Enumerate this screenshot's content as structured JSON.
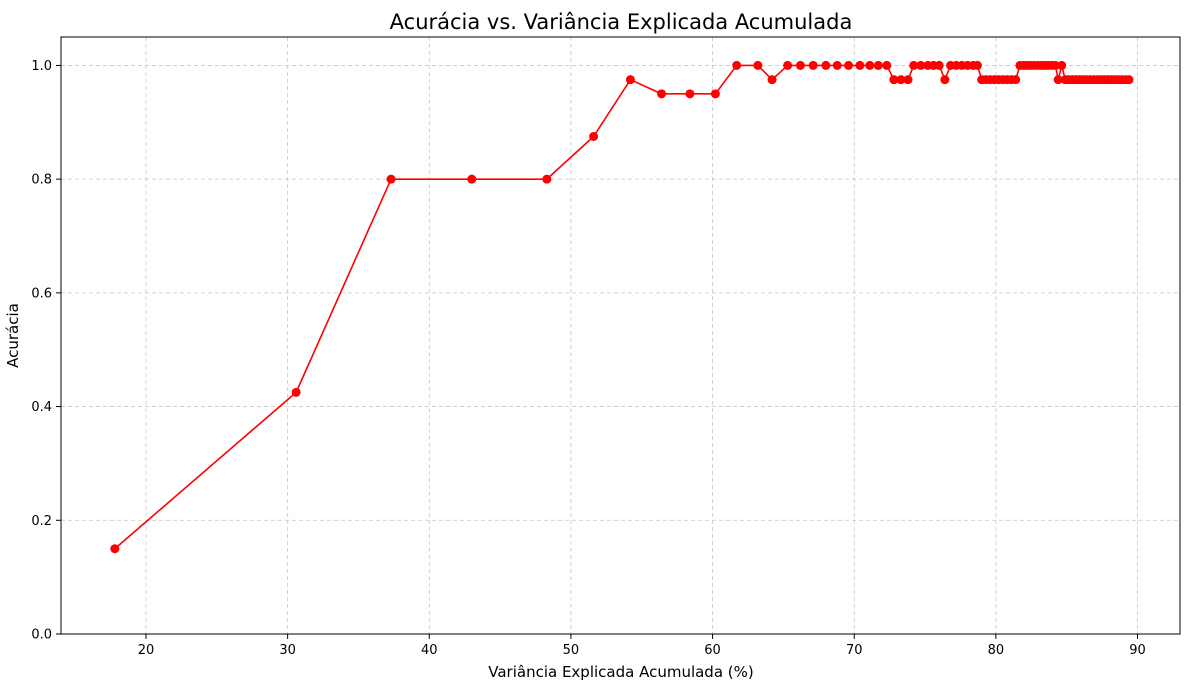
{
  "chart_data": {
    "type": "line",
    "title": "Acurácia vs. Variância Explicada Acumulada",
    "xlabel": "Variância Explicada Acumulada (%)",
    "ylabel": "Acurácia",
    "xlim": [
      14,
      93
    ],
    "ylim": [
      0.0,
      1.05
    ],
    "xticks": [
      20,
      30,
      40,
      50,
      60,
      70,
      80,
      90
    ],
    "yticks": [
      0.0,
      0.2,
      0.4,
      0.6,
      0.8,
      1.0
    ],
    "xtick_labels": [
      "20",
      "30",
      "40",
      "50",
      "60",
      "70",
      "80",
      "90"
    ],
    "ytick_labels": [
      "0.0",
      "0.2",
      "0.4",
      "0.6",
      "0.8",
      "1.0"
    ],
    "grid": true,
    "color": "#ff0000",
    "series": [
      {
        "points": [
          [
            17.8,
            0.15
          ],
          [
            30.6,
            0.425
          ],
          [
            37.3,
            0.8
          ],
          [
            43.0,
            0.8
          ],
          [
            48.3,
            0.8
          ],
          [
            51.6,
            0.875
          ],
          [
            54.2,
            0.975
          ],
          [
            56.4,
            0.95
          ],
          [
            58.4,
            0.95
          ],
          [
            60.2,
            0.95
          ],
          [
            61.7,
            1.0
          ],
          [
            63.2,
            1.0
          ],
          [
            64.2,
            0.975
          ],
          [
            65.3,
            1.0
          ],
          [
            66.2,
            1.0
          ],
          [
            67.1,
            1.0
          ],
          [
            68.0,
            1.0
          ],
          [
            68.8,
            1.0
          ],
          [
            69.6,
            1.0
          ],
          [
            70.4,
            1.0
          ],
          [
            71.1,
            1.0
          ],
          [
            71.7,
            1.0
          ],
          [
            72.3,
            1.0
          ],
          [
            72.8,
            0.975
          ],
          [
            73.3,
            0.975
          ],
          [
            73.8,
            0.975
          ],
          [
            74.2,
            1.0
          ],
          [
            74.7,
            1.0
          ],
          [
            75.2,
            1.0
          ],
          [
            75.6,
            1.0
          ],
          [
            76.0,
            1.0
          ],
          [
            76.4,
            0.975
          ],
          [
            76.8,
            1.0
          ],
          [
            77.2,
            1.0
          ],
          [
            77.6,
            1.0
          ],
          [
            78.0,
            1.0
          ],
          [
            78.4,
            1.0
          ],
          [
            78.7,
            1.0
          ],
          [
            79.0,
            0.975
          ],
          [
            79.3,
            0.975
          ],
          [
            79.6,
            0.975
          ],
          [
            79.9,
            0.975
          ],
          [
            80.2,
            0.975
          ],
          [
            80.5,
            0.975
          ],
          [
            80.8,
            0.975
          ],
          [
            81.1,
            0.975
          ],
          [
            81.4,
            0.975
          ],
          [
            81.7,
            1.0
          ],
          [
            81.95,
            1.0
          ],
          [
            82.2,
            1.0
          ],
          [
            82.45,
            1.0
          ],
          [
            82.7,
            1.0
          ],
          [
            82.95,
            1.0
          ],
          [
            83.2,
            1.0
          ],
          [
            83.45,
            1.0
          ],
          [
            83.7,
            1.0
          ],
          [
            83.95,
            1.0
          ],
          [
            84.2,
            1.0
          ],
          [
            84.4,
            0.975
          ],
          [
            84.65,
            1.0
          ],
          [
            84.9,
            0.975
          ],
          [
            85.15,
            0.975
          ],
          [
            85.4,
            0.975
          ],
          [
            85.65,
            0.975
          ],
          [
            85.9,
            0.975
          ],
          [
            86.15,
            0.975
          ],
          [
            86.4,
            0.975
          ],
          [
            86.65,
            0.975
          ],
          [
            86.9,
            0.975
          ],
          [
            87.15,
            0.975
          ],
          [
            87.4,
            0.975
          ],
          [
            87.65,
            0.975
          ],
          [
            87.9,
            0.975
          ],
          [
            88.15,
            0.975
          ],
          [
            88.4,
            0.975
          ],
          [
            88.65,
            0.975
          ],
          [
            88.9,
            0.975
          ],
          [
            89.15,
            0.975
          ],
          [
            89.4,
            0.975
          ]
        ]
      }
    ]
  }
}
